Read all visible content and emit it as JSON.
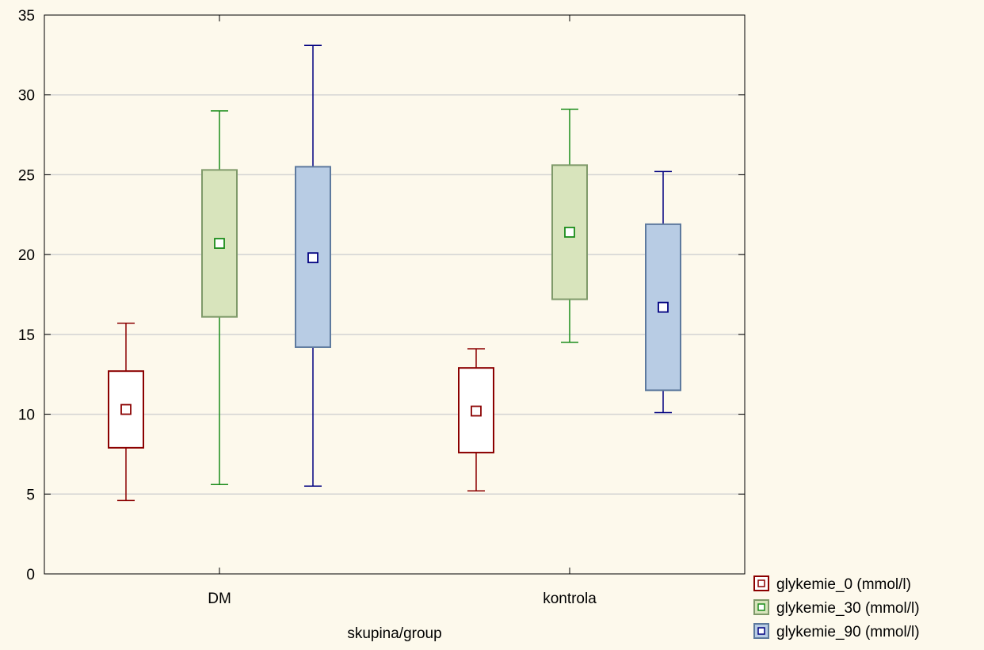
{
  "chart_data": {
    "type": "box",
    "title": "",
    "xlabel": "skupina/group",
    "ylabel": "",
    "categories": [
      "DM",
      "kontrola"
    ],
    "ylim": [
      0,
      35
    ],
    "yticks": [
      0,
      5,
      10,
      15,
      20,
      25,
      30,
      35
    ],
    "grid": true,
    "legend_position": "bottom-right",
    "series": [
      {
        "name": "glykemie_0 (mmol/l)",
        "color": "#8B0000",
        "fill": "#FFFFFF",
        "boxes": [
          {
            "min": 4.6,
            "q1": 7.9,
            "median": 10.3,
            "q3": 12.7,
            "max": 15.7
          },
          {
            "min": 5.2,
            "q1": 7.6,
            "median": 10.2,
            "q3": 12.9,
            "max": 14.1
          }
        ]
      },
      {
        "name": "glykemie_30 (mmol/l)",
        "color": "#1A8C1A",
        "fill": "#D8E4BC",
        "boxes": [
          {
            "min": 5.6,
            "q1": 16.1,
            "median": 20.7,
            "q3": 25.3,
            "max": 29.0
          },
          {
            "min": 14.5,
            "q1": 17.2,
            "median": 21.4,
            "q3": 25.6,
            "max": 29.1
          }
        ]
      },
      {
        "name": "glykemie_90 (mmol/l)",
        "color": "#000080",
        "fill": "#B8CCE4",
        "boxes": [
          {
            "min": 5.5,
            "q1": 14.2,
            "median": 19.8,
            "q3": 25.5,
            "max": 33.1
          },
          {
            "min": 10.1,
            "q1": 11.5,
            "median": 16.7,
            "q3": 21.9,
            "max": 25.2
          }
        ]
      }
    ]
  }
}
